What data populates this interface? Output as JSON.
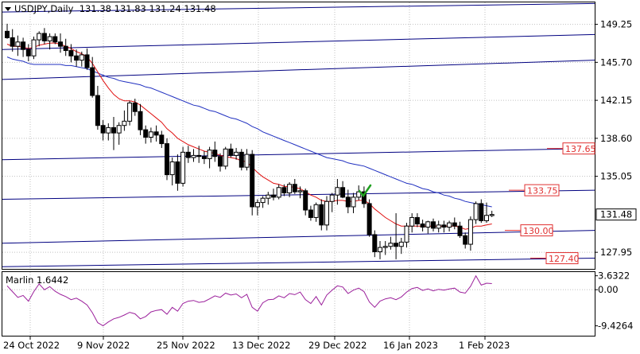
{
  "header": {
    "symbol_line": "USDJPY,Daily  131.38 131.83 131.24 131.48"
  },
  "indicator": {
    "label": "Marlin 1.6442",
    "ticks": [
      "3.6322",
      "0.00",
      "-9.4264"
    ]
  },
  "colors": {
    "bull": "#ffffff",
    "bear": "#000000",
    "ma_fast": "#e01010",
    "ma_slow": "#2030c0",
    "channel": "#000080",
    "marlin": "#9b1f9b",
    "level_box": "#e03030",
    "check": "#20a020",
    "grid": "#c0c0c0"
  },
  "icons": [
    "dropdown-triangle-icon",
    "checkmark-icon"
  ],
  "chart_data": {
    "type": "candlestick",
    "title": "USDJPY,Daily",
    "ohlc_header": {
      "open": 131.38,
      "high": 131.83,
      "low": 131.24,
      "close": 131.48
    },
    "ylim": [
      126.4,
      151.3
    ],
    "y_ticks": [
      "149.25",
      "145.70",
      "142.15",
      "138.60",
      "135.05",
      "131.48",
      "127.95"
    ],
    "x_ticks": [
      "24 Oct 2022",
      "9 Nov 2022",
      "25 Nov 2022",
      "13 Dec 2022",
      "29 Dec 2022",
      "16 Jan 2023",
      "1 Feb 2023"
    ],
    "price_marker": "131.48",
    "levels": [
      {
        "label": "137.65",
        "value": 137.65
      },
      {
        "label": "133.75",
        "value": 133.75
      },
      {
        "label": "130.00",
        "value": 130.0
      },
      {
        "label": "127.40",
        "value": 127.4
      }
    ],
    "candles": [
      [
        148.6,
        149.3,
        147.9,
        148.0
      ],
      [
        148.0,
        148.8,
        146.7,
        147.2
      ],
      [
        147.2,
        148.2,
        146.3,
        147.6
      ],
      [
        147.6,
        148.0,
        146.2,
        146.9
      ],
      [
        146.9,
        147.4,
        145.8,
        146.3
      ],
      [
        146.3,
        148.1,
        146.0,
        147.8
      ],
      [
        147.8,
        148.6,
        147.2,
        148.4
      ],
      [
        148.4,
        148.9,
        147.4,
        147.7
      ],
      [
        147.7,
        148.4,
        146.9,
        148.1
      ],
      [
        148.1,
        148.4,
        147.4,
        147.6
      ],
      [
        147.6,
        148.4,
        146.6,
        147.2
      ],
      [
        147.2,
        147.9,
        146.3,
        146.8
      ],
      [
        146.8,
        147.4,
        145.7,
        146.3
      ],
      [
        146.3,
        146.9,
        145.3,
        145.9
      ],
      [
        145.9,
        146.7,
        145.3,
        146.4
      ],
      [
        146.4,
        147.0,
        145.0,
        145.2
      ],
      [
        145.2,
        146.2,
        142.4,
        142.6
      ],
      [
        142.6,
        143.5,
        139.4,
        139.8
      ],
      [
        139.8,
        140.3,
        138.4,
        139.1
      ],
      [
        139.1,
        140.0,
        138.4,
        139.6
      ],
      [
        139.6,
        140.6,
        137.5,
        139.1
      ],
      [
        139.1,
        140.1,
        138.0,
        139.8
      ],
      [
        139.8,
        141.2,
        139.3,
        140.2
      ],
      [
        140.2,
        142.1,
        139.8,
        141.9
      ],
      [
        141.9,
        142.3,
        140.7,
        141.1
      ],
      [
        141.1,
        141.8,
        138.9,
        139.4
      ],
      [
        139.4,
        139.8,
        138.1,
        138.7
      ],
      [
        138.7,
        139.6,
        138.2,
        139.2
      ],
      [
        139.2,
        139.8,
        138.3,
        138.9
      ],
      [
        138.9,
        139.3,
        137.7,
        138.1
      ],
      [
        138.1,
        138.6,
        134.7,
        135.2
      ],
      [
        135.2,
        136.8,
        134.2,
        136.4
      ],
      [
        136.4,
        137.1,
        133.7,
        134.4
      ],
      [
        134.4,
        137.8,
        134.1,
        137.3
      ],
      [
        137.3,
        137.9,
        136.3,
        136.8
      ],
      [
        136.8,
        137.6,
        136.4,
        137.0
      ],
      [
        137.0,
        137.9,
        136.3,
        136.9
      ],
      [
        136.9,
        137.4,
        136.2,
        136.7
      ],
      [
        136.7,
        137.8,
        135.8,
        137.5
      ],
      [
        137.5,
        138.3,
        136.4,
        136.9
      ],
      [
        136.9,
        137.2,
        135.5,
        136.0
      ],
      [
        136.0,
        137.8,
        135.7,
        137.6
      ],
      [
        137.6,
        138.1,
        136.8,
        137.0
      ],
      [
        137.0,
        137.7,
        136.6,
        137.3
      ],
      [
        137.3,
        137.6,
        135.6,
        135.9
      ],
      [
        135.9,
        137.6,
        135.6,
        137.1
      ],
      [
        137.1,
        137.5,
        131.4,
        132.2
      ],
      [
        132.2,
        132.9,
        131.4,
        132.6
      ],
      [
        132.6,
        133.2,
        132.1,
        133.0
      ],
      [
        133.0,
        133.6,
        132.4,
        133.3
      ],
      [
        133.3,
        133.9,
        132.8,
        133.1
      ],
      [
        133.1,
        134.3,
        132.9,
        134.0
      ],
      [
        134.0,
        134.3,
        133.2,
        133.5
      ],
      [
        133.5,
        134.5,
        133.1,
        134.3
      ],
      [
        134.3,
        134.8,
        133.4,
        133.6
      ],
      [
        133.6,
        134.1,
        133.0,
        133.7
      ],
      [
        133.7,
        133.9,
        131.4,
        131.9
      ],
      [
        131.9,
        132.3,
        130.9,
        131.2
      ],
      [
        131.2,
        132.6,
        130.8,
        132.4
      ],
      [
        132.4,
        132.9,
        130.0,
        130.5
      ],
      [
        130.5,
        133.2,
        130.0,
        132.7
      ],
      [
        132.7,
        133.5,
        131.7,
        133.3
      ],
      [
        133.3,
        134.8,
        132.4,
        134.0
      ],
      [
        134.0,
        134.6,
        133.0,
        133.1
      ],
      [
        133.1,
        133.8,
        131.6,
        132.2
      ],
      [
        132.2,
        133.5,
        131.6,
        133.1
      ],
      [
        133.1,
        134.2,
        132.8,
        133.6
      ],
      [
        133.6,
        134.1,
        132.1,
        132.5
      ],
      [
        132.5,
        132.9,
        129.4,
        129.6
      ],
      [
        129.6,
        130.0,
        127.5,
        128.0
      ],
      [
        128.0,
        129.0,
        127.3,
        128.4
      ],
      [
        128.4,
        129.0,
        127.7,
        128.5
      ],
      [
        128.5,
        129.4,
        128.2,
        128.8
      ],
      [
        128.8,
        131.6,
        127.3,
        128.5
      ],
      [
        128.5,
        129.3,
        127.8,
        128.9
      ],
      [
        128.9,
        130.7,
        128.4,
        130.4
      ],
      [
        130.4,
        131.6,
        129.8,
        131.2
      ],
      [
        131.2,
        131.6,
        130.3,
        130.6
      ],
      [
        130.6,
        131.0,
        129.9,
        130.3
      ],
      [
        130.3,
        130.9,
        129.7,
        130.8
      ],
      [
        130.8,
        131.1,
        129.9,
        130.2
      ],
      [
        130.2,
        130.9,
        129.8,
        130.5
      ],
      [
        130.5,
        130.9,
        129.8,
        130.3
      ],
      [
        130.3,
        130.9,
        129.9,
        130.7
      ],
      [
        130.7,
        131.2,
        130.1,
        130.4
      ],
      [
        130.4,
        130.8,
        129.3,
        129.5
      ],
      [
        129.5,
        129.8,
        128.3,
        128.7
      ],
      [
        128.7,
        131.3,
        128.1,
        131.0
      ],
      [
        131.0,
        132.7,
        130.6,
        132.5
      ],
      [
        132.5,
        132.9,
        130.7,
        130.9
      ],
      [
        130.9,
        132.6,
        130.7,
        131.4
      ],
      [
        131.38,
        131.83,
        131.24,
        131.48
      ]
    ],
    "ma_fast": [
      147.4,
      147.2,
      147.2,
      147.1,
      147.0,
      147.1,
      147.3,
      147.4,
      147.5,
      147.5,
      147.4,
      147.2,
      147.0,
      146.7,
      146.5,
      146.2,
      145.6,
      144.8,
      144.0,
      143.3,
      142.7,
      142.3,
      142.1,
      142.1,
      142.0,
      141.7,
      141.3,
      140.9,
      140.5,
      140.1,
      139.5,
      139.1,
      138.6,
      138.3,
      138.0,
      137.8,
      137.6,
      137.4,
      137.3,
      137.2,
      137.0,
      136.9,
      136.8,
      136.7,
      136.5,
      136.4,
      135.9,
      135.4,
      135.0,
      134.7,
      134.4,
      134.3,
      134.1,
      134.1,
      134.0,
      133.9,
      133.6,
      133.3,
      133.1,
      132.8,
      132.7,
      132.7,
      132.8,
      132.8,
      132.7,
      132.7,
      132.8,
      132.8,
      132.5,
      132.0,
      131.6,
      131.2,
      130.9,
      130.6,
      130.4,
      130.4,
      130.4,
      130.4,
      130.4,
      130.4,
      130.4,
      130.4,
      130.4,
      130.4,
      130.4,
      130.3,
      130.1,
      130.2,
      130.4,
      130.4,
      130.5,
      130.6
    ],
    "ma_slow": [
      146.2,
      146.0,
      145.9,
      145.8,
      145.6,
      145.5,
      145.5,
      145.5,
      145.5,
      145.5,
      145.5,
      145.4,
      145.4,
      145.3,
      145.2,
      145.1,
      144.9,
      144.7,
      144.5,
      144.3,
      144.2,
      144.0,
      143.9,
      143.8,
      143.7,
      143.6,
      143.4,
      143.3,
      143.1,
      142.9,
      142.7,
      142.5,
      142.3,
      142.1,
      141.9,
      141.7,
      141.6,
      141.4,
      141.2,
      141.1,
      140.9,
      140.7,
      140.5,
      140.4,
      140.2,
      140.0,
      139.7,
      139.5,
      139.2,
      139.0,
      138.8,
      138.6,
      138.4,
      138.2,
      138.0,
      137.8,
      137.6,
      137.4,
      137.2,
      137.0,
      136.8,
      136.7,
      136.6,
      136.5,
      136.3,
      136.2,
      136.1,
      136.0,
      135.8,
      135.6,
      135.4,
      135.2,
      135.0,
      134.8,
      134.6,
      134.4,
      134.3,
      134.1,
      133.9,
      133.8,
      133.6,
      133.5,
      133.3,
      133.2,
      133.0,
      132.9,
      132.7,
      132.6,
      132.5,
      132.4,
      132.3,
      132.2
    ],
    "marlin": [
      1.0,
      -0.5,
      -2.0,
      -1.5,
      -3.0,
      -0.5,
      1.5,
      0.0,
      0.8,
      -0.4,
      -1.2,
      -1.8,
      -2.6,
      -2.2,
      -3.0,
      -4.0,
      -6.0,
      -8.6,
      -9.4,
      -8.4,
      -7.6,
      -7.2,
      -6.6,
      -5.9,
      -6.3,
      -7.6,
      -7.0,
      -5.8,
      -5.4,
      -5.2,
      -6.4,
      -4.6,
      -5.6,
      -3.6,
      -3.0,
      -2.8,
      -3.3,
      -3.1,
      -2.4,
      -1.6,
      -2.0,
      -0.9,
      -1.4,
      -1.1,
      -2.1,
      -1.2,
      -4.6,
      -5.6,
      -3.4,
      -2.6,
      -2.5,
      -1.6,
      -2.1,
      -1.0,
      -1.3,
      -0.6,
      -2.6,
      -3.6,
      -1.8,
      -4.0,
      -1.4,
      -0.1,
      1.0,
      0.7,
      -1.0,
      -0.1,
      0.4,
      -0.5,
      -3.2,
      -4.6,
      -3.0,
      -2.4,
      -2.1,
      -2.6,
      -1.9,
      -0.6,
      0.3,
      0.6,
      -0.2,
      0.2,
      -0.3,
      0.1,
      -0.1,
      0.2,
      0.4,
      -0.6,
      -0.9,
      0.9,
      3.6,
      1.2,
      1.7,
      1.6
    ],
    "channel_lines": [
      {
        "y_start": 150.4,
        "y_end": 151.2
      },
      {
        "y_start": 146.9,
        "y_end": 148.3
      },
      {
        "y_start": 144.1,
        "y_end": 145.9
      },
      {
        "y_start": 136.6,
        "y_end": 137.65
      },
      {
        "y_start": 132.9,
        "y_end": 133.75
      },
      {
        "y_start": 128.8,
        "y_end": 130.0
      },
      {
        "y_start": 126.6,
        "y_end": 127.4
      }
    ]
  }
}
